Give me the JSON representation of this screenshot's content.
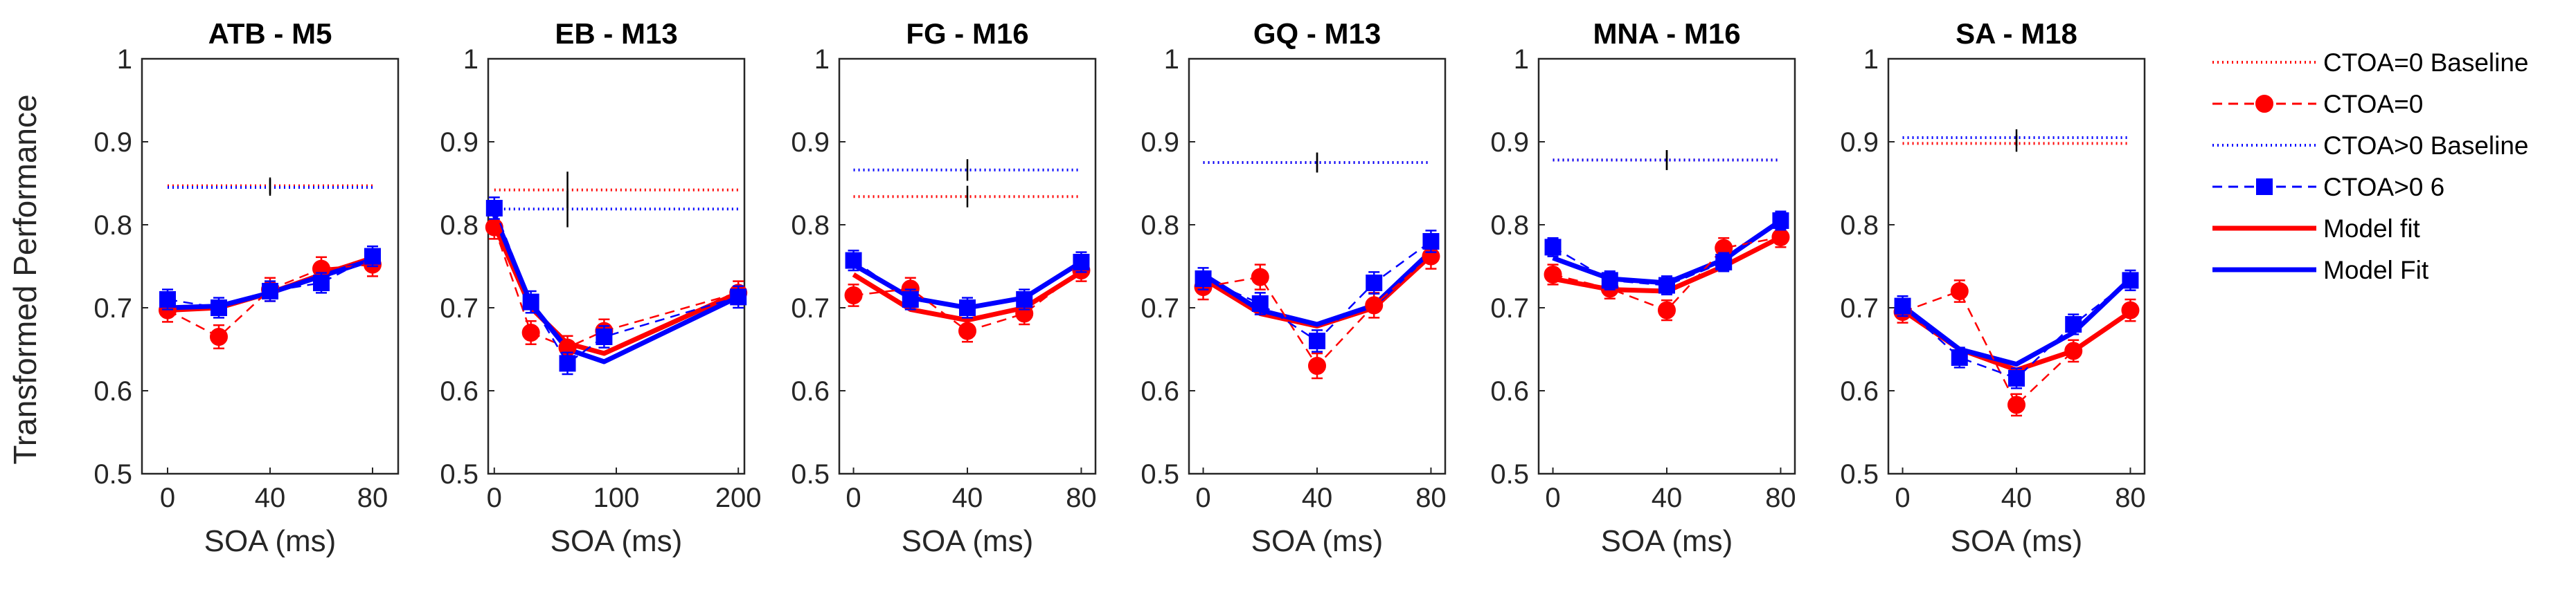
{
  "figure": {
    "ylabel": "Transformed Performance",
    "xlabel": "SOA (ms)",
    "y_ticks": [
      "0.5",
      "0.6",
      "0.7",
      "0.8",
      "0.9",
      "1"
    ],
    "legend": [
      {
        "key": "base0",
        "label": "CTOA=0 Baseline"
      },
      {
        "key": "ct0",
        "label": "CTOA=0"
      },
      {
        "key": "base6",
        "label": "CTOA>0 Baseline"
      },
      {
        "key": "ct6",
        "label": "CTOA>0 6"
      },
      {
        "key": "fit0",
        "label": "Model fit"
      },
      {
        "key": "fit6",
        "label": "Model Fit"
      }
    ],
    "colors": {
      "red": "#ff0000",
      "blue": "#0000ff",
      "errorbar": "#000000"
    }
  },
  "chart_data": [
    {
      "type": "line",
      "title": "ATB - M5",
      "xlabel": "SOA (ms)",
      "ylabel": "Transformed Performance",
      "xlim": [
        -10,
        90
      ],
      "ylim": [
        0.5,
        1
      ],
      "x_ticks": [
        0,
        40,
        80
      ],
      "x": [
        0,
        20,
        40,
        60,
        80
      ],
      "ctoa0": {
        "values": [
          0.697,
          0.665,
          0.722,
          0.747,
          0.752
        ],
        "err": 0.014
      },
      "ctoa6": {
        "values": [
          0.71,
          0.7,
          0.72,
          0.73,
          0.762
        ],
        "err": 0.012
      },
      "fit0": [
        0.697,
        0.7,
        0.718,
        0.74,
        0.76
      ],
      "fit6": [
        0.7,
        0.702,
        0.718,
        0.738,
        0.758
      ],
      "baseline0": {
        "value": 0.847,
        "err_x": 40,
        "err": 0.01
      },
      "baseline6": {
        "value": 0.845,
        "err_x": 40,
        "err": 0.01
      }
    },
    {
      "type": "line",
      "title": "EB - M13",
      "xlabel": "SOA (ms)",
      "ylabel": "Transformed Performance",
      "xlim": [
        -5,
        205
      ],
      "ylim": [
        0.5,
        1
      ],
      "x_ticks": [
        0,
        100,
        200
      ],
      "x": [
        0,
        30,
        60,
        90,
        200
      ],
      "ctoa0": {
        "values": [
          0.797,
          0.67,
          0.652,
          0.672,
          0.718
        ],
        "err": 0.014
      },
      "ctoa6": {
        "values": [
          0.82,
          0.707,
          0.633,
          0.665,
          0.713
        ],
        "err": 0.013
      },
      "fit0": [
        0.8,
        0.7,
        0.657,
        0.645,
        0.718
      ],
      "fit6": [
        0.812,
        0.705,
        0.65,
        0.635,
        0.713
      ],
      "baseline0": {
        "value": 0.842,
        "err_x": 60,
        "err": 0.022
      },
      "baseline6": {
        "value": 0.819,
        "err_x": 60,
        "err": 0.022
      }
    },
    {
      "type": "line",
      "title": "FG - M16",
      "xlabel": "SOA (ms)",
      "ylabel": "Transformed Performance",
      "xlim": [
        -5,
        85
      ],
      "ylim": [
        0.5,
        1
      ],
      "x_ticks": [
        0,
        40,
        80
      ],
      "x": [
        0,
        20,
        40,
        60,
        80
      ],
      "ctoa0": {
        "values": [
          0.715,
          0.723,
          0.672,
          0.693,
          0.745
        ],
        "err": 0.013
      },
      "ctoa6": {
        "values": [
          0.757,
          0.71,
          0.7,
          0.71,
          0.755
        ],
        "err": 0.012
      },
      "fit0": [
        0.74,
        0.698,
        0.685,
        0.7,
        0.743
      ],
      "fit6": [
        0.752,
        0.712,
        0.7,
        0.712,
        0.755
      ],
      "baseline0": {
        "value": 0.834,
        "err_x": 40,
        "err": 0.013
      },
      "baseline6": {
        "value": 0.866,
        "err_x": 40,
        "err": 0.013
      }
    },
    {
      "type": "line",
      "title": "GQ - M13",
      "xlabel": "SOA (ms)",
      "ylabel": "Transformed Performance",
      "xlim": [
        -5,
        85
      ],
      "ylim": [
        0.5,
        1
      ],
      "x_ticks": [
        0,
        40,
        80
      ],
      "x": [
        0,
        20,
        40,
        60,
        80
      ],
      "ctoa0": {
        "values": [
          0.725,
          0.737,
          0.63,
          0.703,
          0.762
        ],
        "err": 0.015
      },
      "ctoa6": {
        "values": [
          0.735,
          0.705,
          0.66,
          0.73,
          0.78
        ],
        "err": 0.013
      },
      "fit0": [
        0.735,
        0.693,
        0.678,
        0.7,
        0.763
      ],
      "fit6": [
        0.74,
        0.697,
        0.68,
        0.703,
        0.768
      ],
      "baseline0": {
        "value": 0.875,
        "err_x": 40,
        "err": 0.012
      },
      "baseline6": {
        "value": 0.875,
        "err_x": 40,
        "err": 0.012
      }
    },
    {
      "type": "line",
      "title": "MNA - M16",
      "xlabel": "SOA (ms)",
      "ylabel": "Transformed Performance",
      "xlim": [
        -5,
        85
      ],
      "ylim": [
        0.5,
        1
      ],
      "x_ticks": [
        0,
        40,
        80
      ],
      "x": [
        0,
        20,
        40,
        60,
        80
      ],
      "ctoa0": {
        "values": [
          0.74,
          0.723,
          0.697,
          0.772,
          0.785
        ],
        "err": 0.012
      },
      "ctoa6": {
        "values": [
          0.773,
          0.733,
          0.727,
          0.755,
          0.805
        ],
        "err": 0.011
      },
      "fit0": [
        0.735,
        0.722,
        0.72,
        0.75,
        0.785
      ],
      "fit6": [
        0.76,
        0.735,
        0.73,
        0.758,
        0.805
      ],
      "baseline0": {
        "value": 0.878,
        "err_x": 40,
        "err": 0.012
      },
      "baseline6": {
        "value": 0.878,
        "err_x": 40,
        "err": 0.012
      }
    },
    {
      "type": "line",
      "title": "SA - M18",
      "xlabel": "SOA (ms)",
      "ylabel": "Transformed Performance",
      "xlim": [
        -5,
        85
      ],
      "ylim": [
        0.5,
        1
      ],
      "x_ticks": [
        0,
        40,
        80
      ],
      "x": [
        0,
        20,
        40,
        60,
        80
      ],
      "ctoa0": {
        "values": [
          0.695,
          0.72,
          0.583,
          0.648,
          0.697
        ],
        "err": 0.013
      },
      "ctoa6": {
        "values": [
          0.702,
          0.64,
          0.615,
          0.68,
          0.733
        ],
        "err": 0.012
      },
      "fit0": [
        0.697,
        0.65,
        0.625,
        0.648,
        0.695
      ],
      "fit6": [
        0.702,
        0.65,
        0.632,
        0.67,
        0.735
      ],
      "baseline0": {
        "value": 0.898,
        "err_x": 40,
        "err": 0.01
      },
      "baseline6": {
        "value": 0.905,
        "err_x": 40,
        "err": 0.01
      }
    }
  ]
}
